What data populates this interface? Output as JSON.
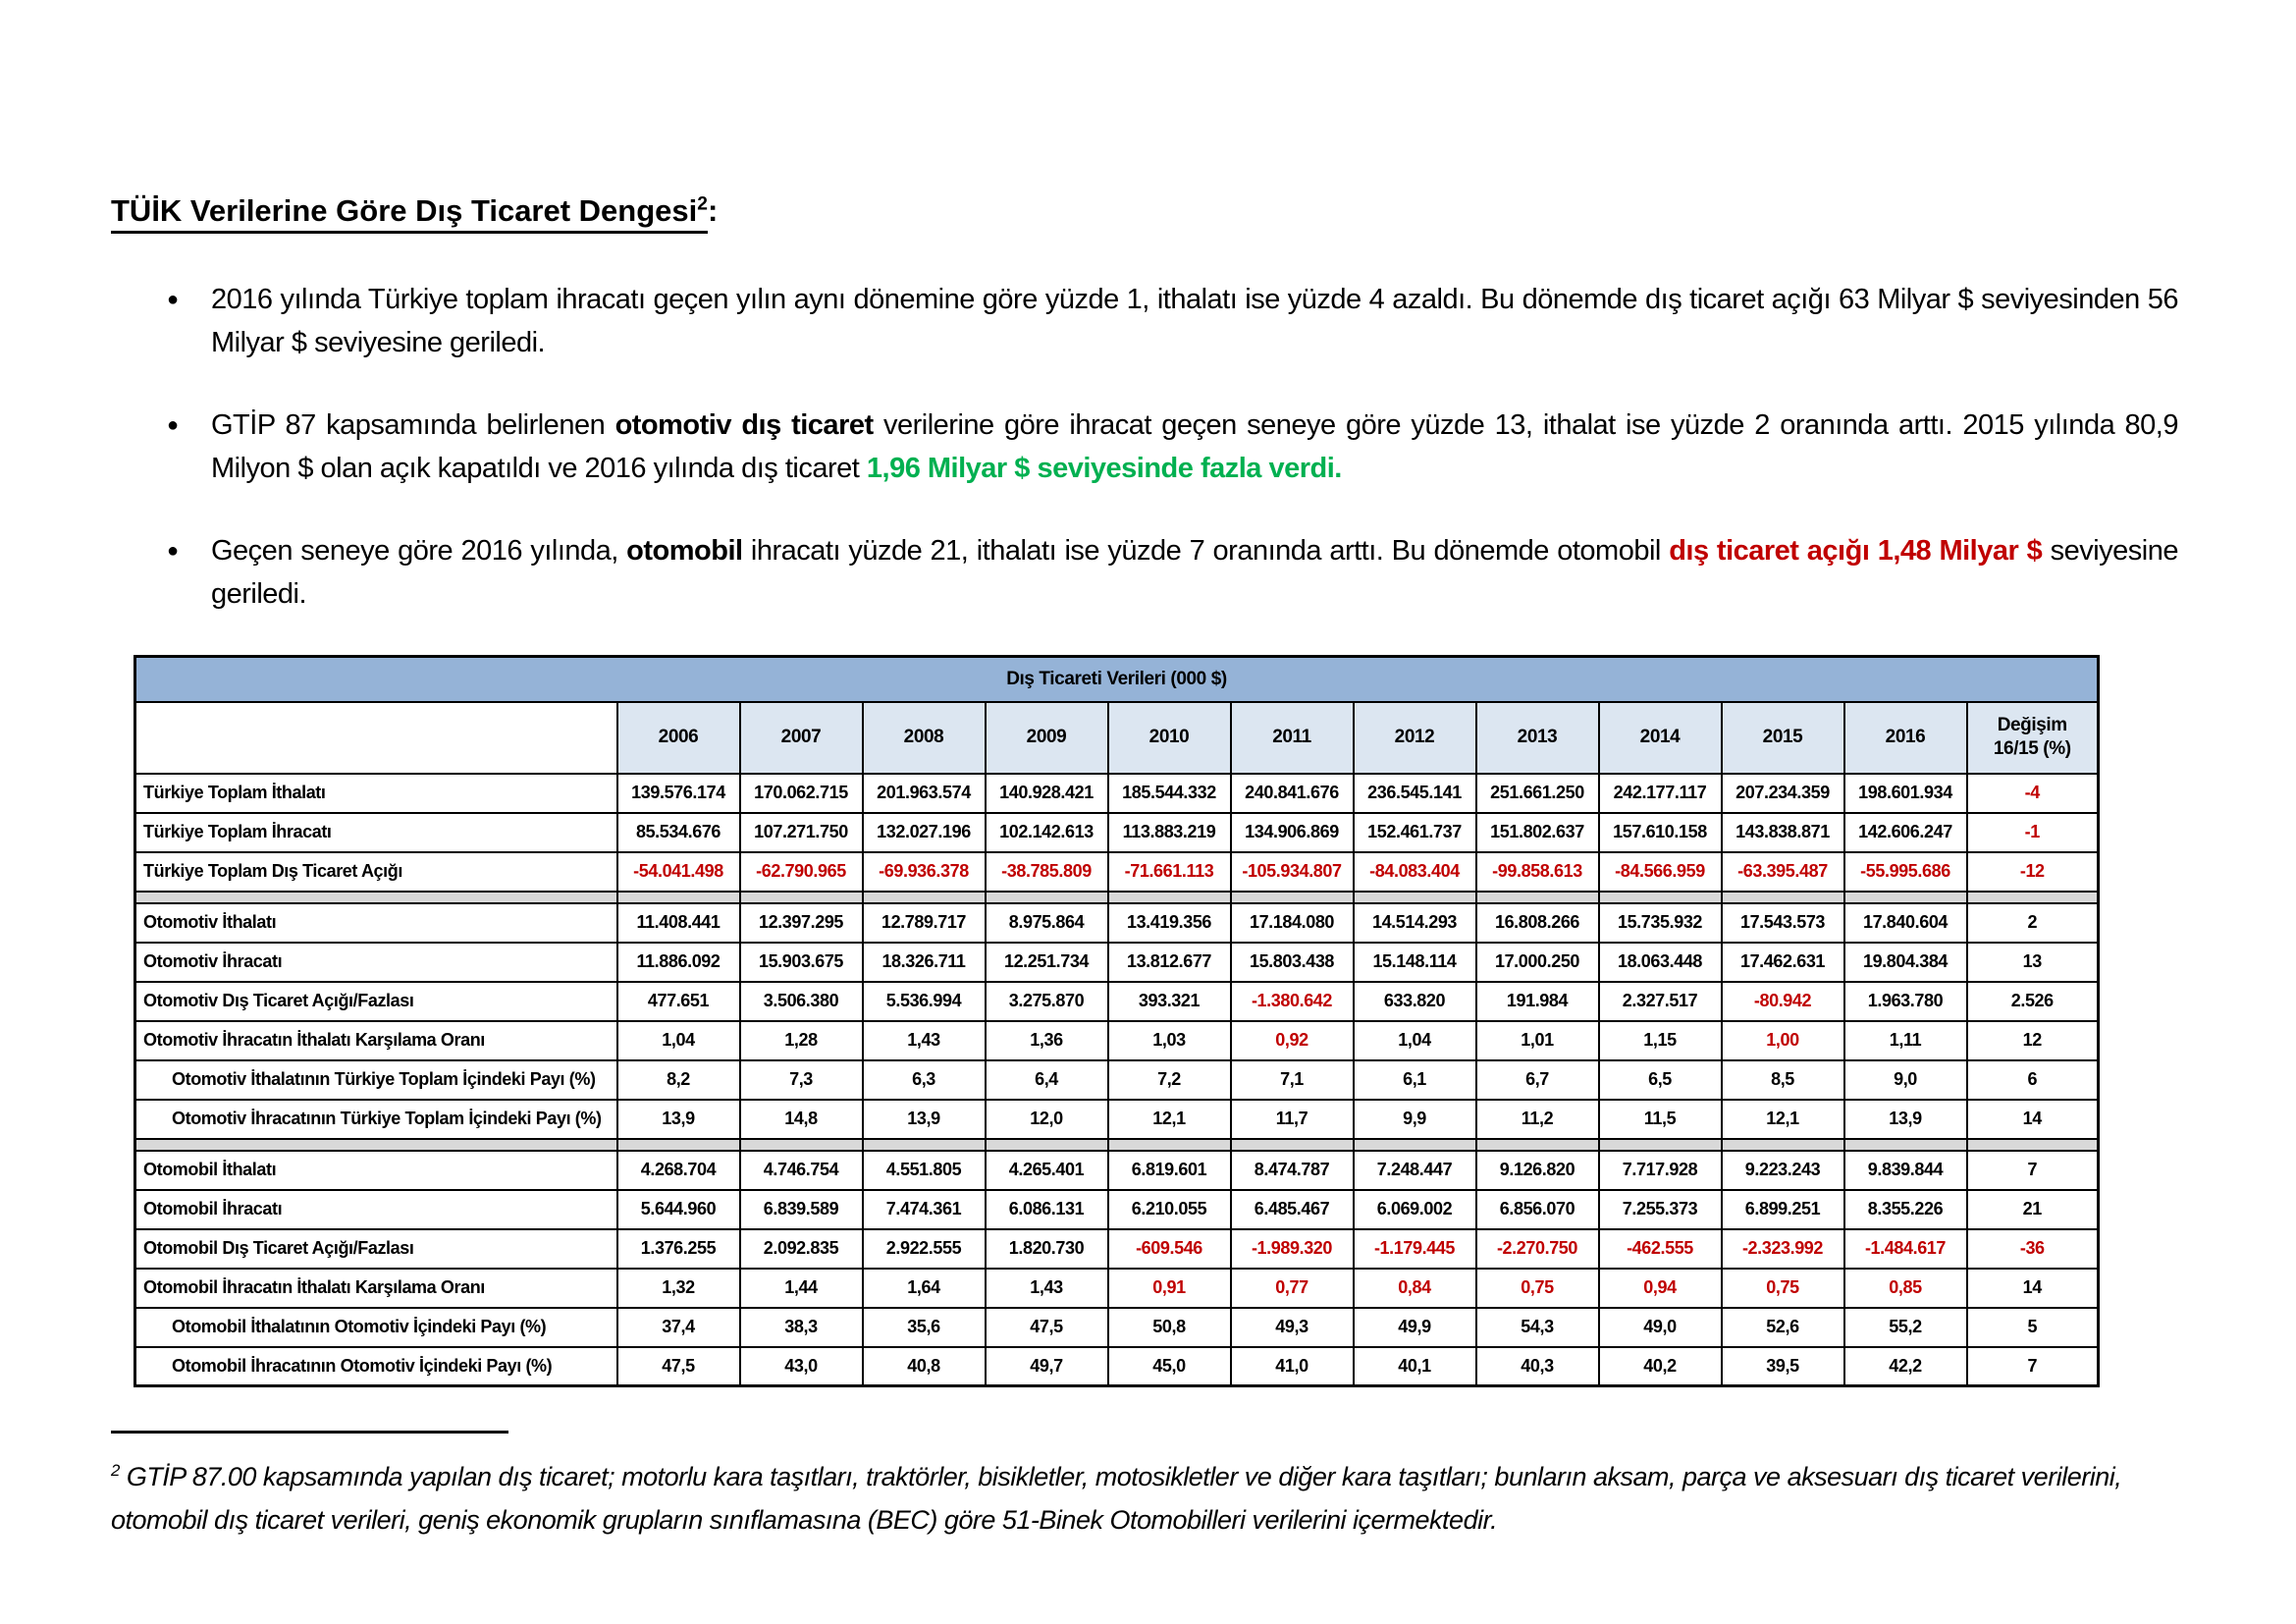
{
  "colors": {
    "band_blue": "#95B3D7",
    "head_blue": "#DCE6F1",
    "sep_gray": "#D9D9D9",
    "red": "#C00000",
    "green": "#00B050",
    "text": "#000000"
  },
  "title": {
    "text": "TÜİK Verilerine Göre Dış Ticaret Dengesi",
    "superscript": "2",
    "suffix": ":"
  },
  "bullet_glyph": "●",
  "bullets": [
    {
      "segments": [
        {
          "style": "normal",
          "text": "2016 yılında Türkiye toplam ihracatı geçen yılın aynı dönemine göre yüzde 1, ithalatı ise yüzde 4 azaldı. Bu dönemde dış ticaret açığı 63 Milyar $ seviyesinden 56 Milyar $ seviyesine geriledi."
        }
      ]
    },
    {
      "segments": [
        {
          "style": "normal",
          "text": "GTİP 87 kapsamında belirlenen "
        },
        {
          "style": "bold",
          "text": "otomotiv dış ticaret"
        },
        {
          "style": "normal",
          "text": " verilerine göre ihracat geçen seneye göre yüzde 13, ithalat ise yüzde 2 oranında arttı. 2015 yılında 80,9 Milyon $ olan açık kapatıldı ve 2016 yılında dış ticaret "
        },
        {
          "style": "bold-green",
          "text": "1,96 Milyar $ seviyesinde fazla verdi."
        }
      ]
    },
    {
      "segments": [
        {
          "style": "normal",
          "text": "Geçen seneye göre 2016 yılında, "
        },
        {
          "style": "bold",
          "text": "otomobil"
        },
        {
          "style": "normal",
          "text": " ihracatı yüzde 21, ithalatı ise yüzde 7 oranında arttı. Bu dönemde otomobil "
        },
        {
          "style": "bold-red",
          "text": "dış ticaret açığı 1,48 Milyar $"
        },
        {
          "style": "normal",
          "text": " seviyesine geriledi."
        }
      ]
    }
  ],
  "table": {
    "title": "Dış Ticareti Verileri (000 $)",
    "years": [
      "2006",
      "2007",
      "2008",
      "2009",
      "2010",
      "2011",
      "2012",
      "2013",
      "2014",
      "2015",
      "2016"
    ],
    "change_header": [
      "Değişim",
      "16/15 (%)"
    ],
    "rows": [
      {
        "label": "Türkiye Toplam İthalatı",
        "indent": false,
        "separator_after": false,
        "values": [
          "139.576.174",
          "170.062.715",
          "201.963.574",
          "140.928.421",
          "185.544.332",
          "240.841.676",
          "236.545.141",
          "251.661.250",
          "242.177.117",
          "207.234.359",
          "198.601.934",
          "-4"
        ],
        "red": [
          11
        ]
      },
      {
        "label": "Türkiye Toplam İhracatı",
        "indent": false,
        "separator_after": false,
        "values": [
          "85.534.676",
          "107.271.750",
          "132.027.196",
          "102.142.613",
          "113.883.219",
          "134.906.869",
          "152.461.737",
          "151.802.637",
          "157.610.158",
          "143.838.871",
          "142.606.247",
          "-1"
        ],
        "red": [
          11
        ]
      },
      {
        "label": "Türkiye Toplam Dış Ticaret Açığı",
        "indent": false,
        "separator_after": true,
        "values": [
          "-54.041.498",
          "-62.790.965",
          "-69.936.378",
          "-38.785.809",
          "-71.661.113",
          "-105.934.807",
          "-84.083.404",
          "-99.858.613",
          "-84.566.959",
          "-63.395.487",
          "-55.995.686",
          "-12"
        ],
        "red": [
          0,
          1,
          2,
          3,
          4,
          5,
          6,
          7,
          8,
          9,
          10,
          11
        ]
      },
      {
        "label": "Otomotiv İthalatı",
        "indent": false,
        "separator_after": false,
        "values": [
          "11.408.441",
          "12.397.295",
          "12.789.717",
          "8.975.864",
          "13.419.356",
          "17.184.080",
          "14.514.293",
          "16.808.266",
          "15.735.932",
          "17.543.573",
          "17.840.604",
          "2"
        ],
        "red": []
      },
      {
        "label": "Otomotiv İhracatı",
        "indent": false,
        "separator_after": false,
        "values": [
          "11.886.092",
          "15.903.675",
          "18.326.711",
          "12.251.734",
          "13.812.677",
          "15.803.438",
          "15.148.114",
          "17.000.250",
          "18.063.448",
          "17.462.631",
          "19.804.384",
          "13"
        ],
        "red": []
      },
      {
        "label": "Otomotiv Dış Ticaret Açığı/Fazlası",
        "indent": false,
        "separator_after": false,
        "values": [
          "477.651",
          "3.506.380",
          "5.536.994",
          "3.275.870",
          "393.321",
          "-1.380.642",
          "633.820",
          "191.984",
          "2.327.517",
          "-80.942",
          "1.963.780",
          "2.526"
        ],
        "red": [
          5,
          9
        ]
      },
      {
        "label": "Otomotiv İhracatın İthalatı Karşılama Oranı",
        "indent": false,
        "separator_after": false,
        "values": [
          "1,04",
          "1,28",
          "1,43",
          "1,36",
          "1,03",
          "0,92",
          "1,04",
          "1,01",
          "1,15",
          "1,00",
          "1,11",
          "12"
        ],
        "red": [
          5,
          9
        ]
      },
      {
        "label": "Otomotiv İthalatının Türkiye Toplam İçindeki Payı (%)",
        "indent": true,
        "separator_after": false,
        "values": [
          "8,2",
          "7,3",
          "6,3",
          "6,4",
          "7,2",
          "7,1",
          "6,1",
          "6,7",
          "6,5",
          "8,5",
          "9,0",
          "6"
        ],
        "red": []
      },
      {
        "label": "Otomotiv İhracatının Türkiye Toplam İçindeki Payı (%)",
        "indent": true,
        "separator_after": true,
        "values": [
          "13,9",
          "14,8",
          "13,9",
          "12,0",
          "12,1",
          "11,7",
          "9,9",
          "11,2",
          "11,5",
          "12,1",
          "13,9",
          "14"
        ],
        "red": []
      },
      {
        "label": "Otomobil İthalatı",
        "indent": false,
        "separator_after": false,
        "values": [
          "4.268.704",
          "4.746.754",
          "4.551.805",
          "4.265.401",
          "6.819.601",
          "8.474.787",
          "7.248.447",
          "9.126.820",
          "7.717.928",
          "9.223.243",
          "9.839.844",
          "7"
        ],
        "red": []
      },
      {
        "label": "Otomobil İhracatı",
        "indent": false,
        "separator_after": false,
        "values": [
          "5.644.960",
          "6.839.589",
          "7.474.361",
          "6.086.131",
          "6.210.055",
          "6.485.467",
          "6.069.002",
          "6.856.070",
          "7.255.373",
          "6.899.251",
          "8.355.226",
          "21"
        ],
        "red": []
      },
      {
        "label": "Otomobil Dış Ticaret Açığı/Fazlası",
        "indent": false,
        "separator_after": false,
        "values": [
          "1.376.255",
          "2.092.835",
          "2.922.555",
          "1.820.730",
          "-609.546",
          "-1.989.320",
          "-1.179.445",
          "-2.270.750",
          "-462.555",
          "-2.323.992",
          "-1.484.617",
          "-36"
        ],
        "red": [
          4,
          5,
          6,
          7,
          8,
          9,
          10,
          11
        ]
      },
      {
        "label": "Otomobil İhracatın İthalatı Karşılama Oranı",
        "indent": false,
        "separator_after": false,
        "values": [
          "1,32",
          "1,44",
          "1,64",
          "1,43",
          "0,91",
          "0,77",
          "0,84",
          "0,75",
          "0,94",
          "0,75",
          "0,85",
          "14"
        ],
        "red": [
          4,
          5,
          6,
          7,
          8,
          9,
          10
        ]
      },
      {
        "label": "Otomobil İthalatının Otomotiv İçindeki Payı (%)",
        "indent": true,
        "separator_after": false,
        "values": [
          "37,4",
          "38,3",
          "35,6",
          "47,5",
          "50,8",
          "49,3",
          "49,9",
          "54,3",
          "49,0",
          "52,6",
          "55,2",
          "5"
        ],
        "red": []
      },
      {
        "label": "Otomobil İhracatının Otomotiv İçindeki Payı (%)",
        "indent": true,
        "separator_after": false,
        "values": [
          "47,5",
          "43,0",
          "40,8",
          "49,7",
          "45,0",
          "41,0",
          "40,1",
          "40,3",
          "40,2",
          "39,5",
          "42,2",
          "7"
        ],
        "red": []
      }
    ]
  },
  "footnote": {
    "superscript": "2",
    "text": " GTİP 87.00 kapsamında yapılan dış ticaret; motorlu kara taşıtları, traktörler, bisikletler, motosikletler ve diğer kara taşıtları; bunların aksam, parça ve aksesuarı dış ticaret verilerini, otomobil dış ticaret verileri, geniş ekonomik grupların sınıflamasına (BEC) göre 51-Binek Otomobilleri verilerini içermektedir."
  }
}
